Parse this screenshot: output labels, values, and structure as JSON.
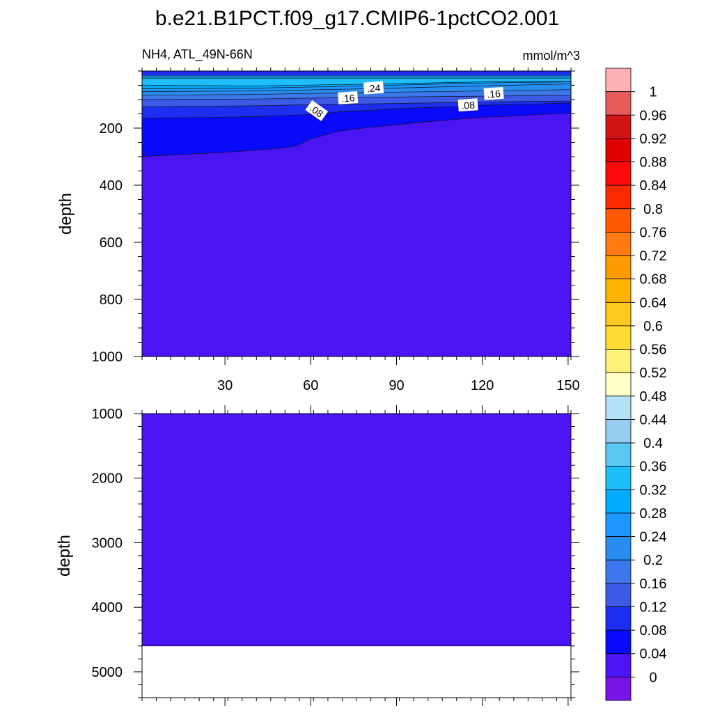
{
  "title": "b.e21.B1PCT.f09_g17.CMIP6-1pctCO2.001",
  "subtitle_left": "NH4, ATL_49N-66N",
  "subtitle_right": "mmol/m^3",
  "chart_data": [
    {
      "type": "heatmap",
      "panel": "upper",
      "variable": "NH4",
      "region": "ATL_49N-66N",
      "units": "mmol/m^3",
      "xlabel": "",
      "ylabel": "depth",
      "xlim": [
        1,
        151
      ],
      "ylim": [
        1000,
        0
      ],
      "y_reversed": true,
      "xticks": [
        30,
        60,
        90,
        120,
        150
      ],
      "yticks": [
        200,
        400,
        600,
        800,
        1000
      ],
      "contour_labels": [
        {
          "text": ".24",
          "x": 82,
          "depth": 60
        },
        {
          "text": ".16",
          "x": 73,
          "depth": 95
        },
        {
          "text": ".16",
          "x": 124,
          "depth": 80
        },
        {
          "text": ".08",
          "x": 62,
          "depth": 140
        },
        {
          "text": ".08",
          "x": 115,
          "depth": 120
        }
      ],
      "background_level": "0-0.04",
      "layers": [
        {
          "level": "0.04-0.08",
          "top_depth": 15,
          "bottom_depth_by_x": [
            [
              1,
              300
            ],
            [
              10,
              295
            ],
            [
              20,
              290
            ],
            [
              30,
              285
            ],
            [
              40,
              278
            ],
            [
              50,
              270
            ],
            [
              55,
              262
            ],
            [
              60,
              238
            ],
            [
              70,
              210
            ],
            [
              80,
              198
            ],
            [
              90,
              188
            ],
            [
              100,
              178
            ],
            [
              110,
              170
            ],
            [
              120,
              162
            ],
            [
              130,
              158
            ],
            [
              140,
              152
            ],
            [
              151,
              148
            ]
          ]
        },
        {
          "level": "0.08-0.12",
          "top_depth": 15,
          "bottom_depth_by_x": [
            [
              1,
              165
            ],
            [
              20,
              163
            ],
            [
              40,
              160
            ],
            [
              60,
              152
            ],
            [
              70,
              143
            ],
            [
              80,
              138
            ],
            [
              90,
              132
            ],
            [
              100,
              128
            ],
            [
              110,
              125
            ],
            [
              120,
              120
            ],
            [
              130,
              118
            ],
            [
              140,
              115
            ],
            [
              151,
              112
            ]
          ]
        },
        {
          "level": "0.12-0.16",
          "top_depth": 15,
          "bottom_depth_by_x": [
            [
              1,
              125
            ],
            [
              40,
              122
            ],
            [
              60,
              118
            ],
            [
              80,
              115
            ],
            [
              100,
              112
            ],
            [
              120,
              108
            ],
            [
              151,
              105
            ]
          ]
        },
        {
          "level": "0.16-0.20",
          "top_depth": 15,
          "bottom_depth_by_x": [
            [
              1,
              100
            ],
            [
              40,
              98
            ],
            [
              80,
              92
            ],
            [
              120,
              88
            ],
            [
              151,
              85
            ]
          ]
        },
        {
          "level": "0.20-0.24",
          "top_depth": 15,
          "bottom_depth_by_x": [
            [
              1,
              85
            ],
            [
              40,
              82
            ],
            [
              80,
              75
            ],
            [
              120,
              70
            ],
            [
              151,
              65
            ]
          ]
        },
        {
          "level": "0.24-0.28",
          "top_depth": 15,
          "bottom_depth_by_x": [
            [
              1,
              72
            ],
            [
              40,
              70
            ],
            [
              80,
              62
            ],
            [
              120,
              52
            ],
            [
              151,
              45
            ]
          ]
        },
        {
          "level": "0.28-0.32",
          "top_depth": 20,
          "bottom_depth_by_x": [
            [
              1,
              62
            ],
            [
              40,
              60
            ],
            [
              80,
              52
            ],
            [
              120,
              42
            ],
            [
              151,
              38
            ]
          ]
        },
        {
          "level": "0.32-0.36",
          "top_depth": 25,
          "bottom_depth_by_x": [
            [
              1,
              50
            ],
            [
              40,
              52
            ],
            [
              80,
              46
            ],
            [
              120,
              38
            ],
            [
              151,
              35
            ]
          ]
        }
      ]
    },
    {
      "type": "heatmap",
      "panel": "lower",
      "xlabel": "",
      "ylabel": "depth",
      "xlim": [
        1,
        151
      ],
      "ylim": [
        5400,
        1000
      ],
      "y_reversed": true,
      "yticks": [
        1000,
        2000,
        3000,
        4000,
        5000
      ],
      "fill_level": "0-0.04",
      "data_bottom_depth": 4600
    }
  ],
  "colorbar": {
    "labels": [
      "1",
      "0.96",
      "0.92",
      "0.88",
      "0.84",
      "0.8",
      "0.76",
      "0.72",
      "0.68",
      "0.64",
      "0.6",
      "0.56",
      "0.52",
      "0.48",
      "0.44",
      "0.4",
      "0.36",
      "0.32",
      "0.28",
      "0.24",
      "0.2",
      "0.16",
      "0.12",
      "0.08",
      "0.04",
      "0"
    ],
    "colors_top_to_bottom": [
      "#ffb1b1",
      "#e65a5a",
      "#d21414",
      "#e10000",
      "#ff0a0a",
      "#ff2a00",
      "#ff5a00",
      "#ff7a10",
      "#ff9a00",
      "#ffb400",
      "#ffc81e",
      "#ffdc32",
      "#fff078",
      "#ffffc8",
      "#b4e1f5",
      "#96cdf0",
      "#5ac8f5",
      "#1ebefa",
      "#00aaff",
      "#1e96ff",
      "#288cf0",
      "#3c78eb",
      "#3c5ae6",
      "#1e2ef0",
      "#0a0afa",
      "#4a14f5",
      "#7814e6"
    ]
  }
}
